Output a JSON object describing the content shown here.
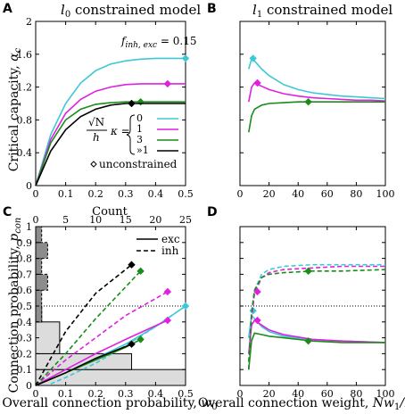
{
  "panels": {
    "A": {
      "letter": "A",
      "title_var": "l",
      "title_sub": "0",
      "title_rest": " constrained model"
    },
    "B": {
      "letter": "B",
      "title_var": "l",
      "title_sub": "1",
      "title_rest": " constrained model"
    },
    "C": {
      "letter": "C"
    },
    "D": {
      "letter": "D"
    }
  },
  "labels": {
    "ylabel_top_main": "Critical capacity, ",
    "ylabel_top_var": "α",
    "ylabel_top_sub": "c",
    "ylabel_bot_main": "Connection probability, ",
    "ylabel_bot_var": "p",
    "ylabel_bot_sub": "con",
    "xlabel_c_main": "Overall connection probability, ",
    "xlabel_c_var": "w",
    "xlabel_c_sub": "0",
    "xlabel_d_main": "Overall connection weight, ",
    "xlabel_d_var": "Nw",
    "xlabel_d_sub": "1",
    "xlabel_d_tail": "/h",
    "count_label": "Count",
    "finh_var": "f",
    "finh_sub": "inh, exc",
    "finh_val": " = 0.15",
    "kappa_sqrtN": "√N",
    "kappa_h": "h",
    "kappa_var": "κ = ",
    "kappa_vals": [
      "0",
      "1",
      "3",
      "»1"
    ],
    "unconstrained_label": "unconstrained",
    "exc_label": "exc",
    "inh_label": "inh"
  },
  "colors": {
    "cyan": "#3ec8d4",
    "magenta": "#e020e0",
    "green": "#1a8c1a",
    "black": "#000000",
    "hist_dark": "#8c8c8c",
    "hist_light": "#dcdcdc"
  },
  "ticks": {
    "A_x": [
      "0",
      "0.1",
      "0.2",
      "0.3",
      "0.4",
      "0.5"
    ],
    "A_y": [
      "0",
      "0.4",
      "0.8",
      "1.2",
      "1.6",
      "2"
    ],
    "B_x": [
      "0",
      "20",
      "40",
      "60",
      "80",
      "100"
    ],
    "C_x": [
      "0",
      "0.1",
      "0.2",
      "0.3",
      "0.4",
      "0.5"
    ],
    "C_y": [
      "0",
      "0.1",
      "0.2",
      "0.3",
      "0.4",
      "0.5",
      "0.6",
      "0.7",
      "0.8",
      "0.9",
      "1"
    ],
    "C_top": [
      "0",
      "5",
      "10",
      "15",
      "20",
      "25"
    ],
    "D_x": [
      "0",
      "20",
      "40",
      "60",
      "80",
      "100"
    ]
  },
  "chart_data": [
    {
      "panel": "A",
      "type": "line",
      "xlim": [
        0,
        0.5
      ],
      "ylim": [
        0,
        2
      ],
      "series": [
        {
          "color": "cyan",
          "x": [
            0,
            0.05,
            0.1,
            0.15,
            0.2,
            0.25,
            0.3,
            0.35,
            0.4,
            0.45,
            0.5
          ],
          "y": [
            0,
            0.62,
            1.0,
            1.25,
            1.4,
            1.48,
            1.52,
            1.54,
            1.55,
            1.55,
            1.55
          ],
          "marker": [
            0.5,
            1.55
          ]
        },
        {
          "color": "magenta",
          "x": [
            0,
            0.05,
            0.1,
            0.15,
            0.2,
            0.25,
            0.3,
            0.35,
            0.4,
            0.45,
            0.5
          ],
          "y": [
            0,
            0.56,
            0.88,
            1.05,
            1.15,
            1.2,
            1.23,
            1.24,
            1.24,
            1.24,
            1.24
          ],
          "marker": [
            0.44,
            1.24
          ]
        },
        {
          "color": "green",
          "x": [
            0,
            0.05,
            0.1,
            0.15,
            0.2,
            0.25,
            0.3,
            0.35,
            0.4,
            0.45,
            0.5
          ],
          "y": [
            0,
            0.52,
            0.8,
            0.93,
            0.99,
            1.01,
            1.02,
            1.02,
            1.02,
            1.02,
            1.02
          ],
          "marker": [
            0.35,
            1.02
          ]
        },
        {
          "color": "black",
          "x": [
            0,
            0.05,
            0.1,
            0.15,
            0.2,
            0.25,
            0.3,
            0.35,
            0.4,
            0.45,
            0.5
          ],
          "y": [
            0,
            0.42,
            0.68,
            0.84,
            0.93,
            0.98,
            1.0,
            1.0,
            1.0,
            1.0,
            1.0
          ],
          "marker": [
            0.32,
            1.0
          ]
        }
      ]
    },
    {
      "panel": "B",
      "type": "line",
      "xlim": [
        0,
        100
      ],
      "ylim": [
        0,
        2
      ],
      "series": [
        {
          "color": "cyan",
          "x": [
            6,
            8,
            10,
            15,
            20,
            30,
            40,
            50,
            60,
            70,
            80,
            90,
            100
          ],
          "y": [
            1.42,
            1.54,
            1.52,
            1.42,
            1.34,
            1.23,
            1.17,
            1.13,
            1.11,
            1.09,
            1.08,
            1.07,
            1.06
          ],
          "marker": [
            9,
            1.55
          ]
        },
        {
          "color": "magenta",
          "x": [
            6,
            8,
            10,
            15,
            20,
            30,
            40,
            50,
            60,
            70,
            80,
            90,
            100
          ],
          "y": [
            1.02,
            1.2,
            1.25,
            1.21,
            1.17,
            1.12,
            1.09,
            1.07,
            1.06,
            1.05,
            1.04,
            1.04,
            1.03
          ],
          "marker": [
            12,
            1.25
          ]
        },
        {
          "color": "green",
          "x": [
            6,
            8,
            10,
            15,
            20,
            30,
            40,
            50,
            60,
            70,
            80,
            90,
            100
          ],
          "y": [
            0.65,
            0.85,
            0.93,
            0.98,
            1.0,
            1.01,
            1.02,
            1.02,
            1.02,
            1.02,
            1.02,
            1.02,
            1.02
          ],
          "marker": [
            47,
            1.02
          ]
        }
      ]
    },
    {
      "panel": "C",
      "type": "line",
      "xlim": [
        0,
        0.5
      ],
      "ylim": [
        0,
        1
      ],
      "series": [
        {
          "name": "exc",
          "color": "cyan",
          "dash": false,
          "x": [
            0,
            0.1,
            0.2,
            0.3,
            0.4,
            0.5
          ],
          "y": [
            0,
            0.08,
            0.17,
            0.26,
            0.37,
            0.5
          ],
          "marker": [
            0.5,
            0.5
          ]
        },
        {
          "name": "inh",
          "color": "cyan",
          "dash": true,
          "x": [
            0.05,
            0.1,
            0.2,
            0.3,
            0.4,
            0.5
          ],
          "y": [
            0.01,
            0.05,
            0.14,
            0.25,
            0.37,
            0.5
          ]
        },
        {
          "name": "exc",
          "color": "magenta",
          "dash": false,
          "x": [
            0,
            0.1,
            0.2,
            0.3,
            0.44
          ],
          "y": [
            0,
            0.1,
            0.2,
            0.29,
            0.41
          ],
          "marker": [
            0.44,
            0.41
          ]
        },
        {
          "name": "inh",
          "color": "magenta",
          "dash": true,
          "x": [
            0,
            0.1,
            0.2,
            0.3,
            0.44
          ],
          "y": [
            0,
            0.16,
            0.3,
            0.44,
            0.59
          ],
          "marker": [
            0.44,
            0.59
          ]
        },
        {
          "name": "exc",
          "color": "green",
          "dash": false,
          "x": [
            0,
            0.1,
            0.2,
            0.3,
            0.35
          ],
          "y": [
            0,
            0.08,
            0.16,
            0.24,
            0.29
          ],
          "marker": [
            0.35,
            0.29
          ]
        },
        {
          "name": "inh",
          "color": "green",
          "dash": true,
          "x": [
            0,
            0.1,
            0.2,
            0.3,
            0.35
          ],
          "y": [
            0,
            0.2,
            0.42,
            0.62,
            0.72
          ],
          "marker": [
            0.35,
            0.72
          ]
        },
        {
          "name": "exc",
          "color": "black",
          "dash": false,
          "x": [
            0,
            0.1,
            0.2,
            0.32
          ],
          "y": [
            0,
            0.08,
            0.17,
            0.26
          ],
          "marker": [
            0.32,
            0.26
          ]
        },
        {
          "name": "inh",
          "color": "black",
          "dash": true,
          "x": [
            0,
            0.1,
            0.2,
            0.32
          ],
          "y": [
            0,
            0.34,
            0.58,
            0.76
          ],
          "marker": [
            0.32,
            0.76
          ]
        }
      ],
      "hist_exc": {
        "color": "hist_light",
        "bins": [
          {
            "y0": 0,
            "y1": 0.1,
            "count": 25
          },
          {
            "y0": 0.1,
            "y1": 0.2,
            "count": 16
          },
          {
            "y0": 0.2,
            "y1": 0.4,
            "count": 4
          },
          {
            "y0": 0.4,
            "y1": 0.5,
            "count": 1
          }
        ]
      },
      "hist_inh": {
        "color": "hist_dark",
        "bins": [
          {
            "y0": 0.4,
            "y1": 0.6,
            "count": 1
          },
          {
            "y0": 0.6,
            "y1": 0.7,
            "count": 2
          },
          {
            "y0": 0.7,
            "y1": 0.8,
            "count": 1
          },
          {
            "y0": 0.8,
            "y1": 0.9,
            "count": 2
          },
          {
            "y0": 0.9,
            "y1": 1.0,
            "count": 1
          }
        ]
      },
      "hline": 0.5
    },
    {
      "panel": "D",
      "type": "line",
      "xlim": [
        0,
        100
      ],
      "ylim": [
        0,
        1
      ],
      "series": [
        {
          "color": "cyan",
          "dash": false,
          "x": [
            6,
            8,
            10,
            15,
            20,
            30,
            50,
            70,
            100
          ],
          "y": [
            0.3,
            0.44,
            0.42,
            0.37,
            0.34,
            0.31,
            0.29,
            0.28,
            0.27
          ],
          "marker": [
            9,
            0.47
          ]
        },
        {
          "color": "cyan",
          "dash": true,
          "x": [
            6,
            8,
            10,
            15,
            20,
            30,
            50,
            70,
            100
          ],
          "y": [
            0.1,
            0.45,
            0.6,
            0.7,
            0.73,
            0.75,
            0.76,
            0.76,
            0.76
          ]
        },
        {
          "color": "magenta",
          "dash": false,
          "x": [
            6,
            8,
            10,
            15,
            20,
            30,
            50,
            70,
            100
          ],
          "y": [
            0.2,
            0.38,
            0.41,
            0.38,
            0.35,
            0.32,
            0.29,
            0.28,
            0.27
          ],
          "marker": [
            12,
            0.41
          ]
        },
        {
          "color": "magenta",
          "dash": true,
          "x": [
            6,
            8,
            10,
            15,
            20,
            30,
            50,
            70,
            100
          ],
          "y": [
            0.1,
            0.42,
            0.58,
            0.68,
            0.71,
            0.73,
            0.74,
            0.75,
            0.75
          ],
          "marker": [
            12,
            0.59
          ]
        },
        {
          "color": "green",
          "dash": false,
          "x": [
            6,
            8,
            10,
            15,
            20,
            30,
            50,
            70,
            100
          ],
          "y": [
            0.1,
            0.28,
            0.33,
            0.32,
            0.31,
            0.3,
            0.28,
            0.27,
            0.27
          ],
          "marker": [
            47,
            0.28
          ]
        },
        {
          "color": "green",
          "dash": true,
          "x": [
            6,
            8,
            10,
            15,
            20,
            30,
            50,
            70,
            100
          ],
          "y": [
            0.15,
            0.46,
            0.6,
            0.68,
            0.7,
            0.71,
            0.72,
            0.72,
            0.73
          ],
          "marker": [
            47,
            0.72
          ]
        }
      ],
      "hline": 0.5
    }
  ]
}
